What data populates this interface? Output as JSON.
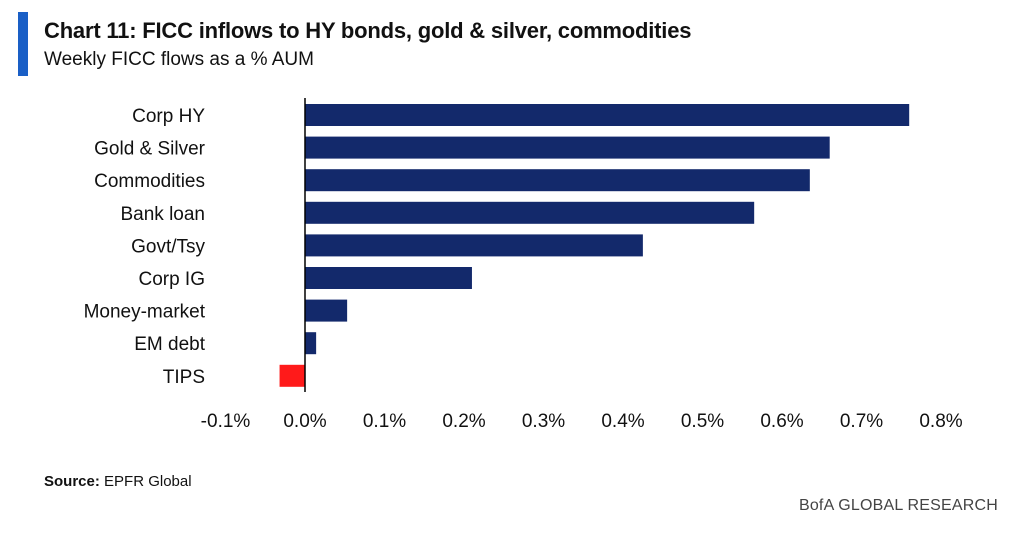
{
  "header": {
    "title": "Chart 11: FICC inflows to HY bonds, gold & silver, commodities",
    "subtitle": "Weekly FICC flows as a % AUM"
  },
  "footer": {
    "source_label": "Source:",
    "source_text": "EPFR Global",
    "brand": "BofA GLOBAL RESEARCH"
  },
  "colors": {
    "positive_bar": "#13296b",
    "negative_bar": "#ff1a1a",
    "accent": "#1a5fc6",
    "axis": "#000000"
  },
  "chart_data": {
    "type": "bar",
    "orientation": "horizontal",
    "categories": [
      "Corp HY",
      "Gold & Silver",
      "Commodities",
      "Bank loan",
      "Govt/Tsy",
      "Corp IG",
      "Money-market",
      "EM debt",
      "TIPS"
    ],
    "values": [
      0.76,
      0.66,
      0.635,
      0.565,
      0.425,
      0.21,
      0.053,
      0.014,
      -0.032
    ],
    "unit": "%",
    "xlim": [
      -0.1,
      0.8
    ],
    "xticks": [
      "-0.1%",
      "0.0%",
      "0.1%",
      "0.2%",
      "0.3%",
      "0.4%",
      "0.5%",
      "0.6%",
      "0.7%",
      "0.8%"
    ],
    "grid": false,
    "legend": "none"
  }
}
